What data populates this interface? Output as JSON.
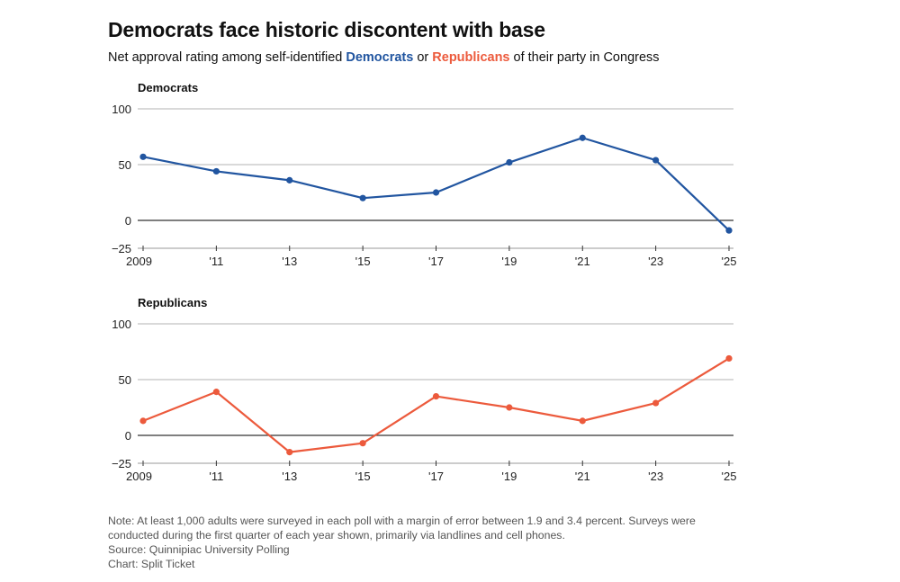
{
  "title": "Democrats face historic discontent with base",
  "subtitle": {
    "prefix": "Net approval rating among self-identified ",
    "dem": "Democrats",
    "middle": " or ",
    "rep": "Republicans",
    "suffix": " of their party in Congress"
  },
  "colors": {
    "dem": "#2155a0",
    "rep": "#ec5a3c",
    "grid": "#b3b3b3",
    "zero": "#333333"
  },
  "chart_data": [
    {
      "type": "line",
      "title": "Democrats",
      "xlabel": "",
      "ylabel": "",
      "x": [
        2009,
        2011,
        2013,
        2015,
        2017,
        2019,
        2021,
        2023,
        2025
      ],
      "xtick_labels": [
        "2009",
        "'11",
        "'13",
        "'15",
        "'17",
        "'19",
        "'21",
        "'23",
        "'25"
      ],
      "ytick_values": [
        100,
        50,
        0,
        -25
      ],
      "ytick_labels": [
        "100",
        "50",
        "0",
        "−25"
      ],
      "ylim": [
        -25,
        100
      ],
      "series": [
        {
          "name": "Democrats",
          "values": [
            57,
            44,
            36,
            20,
            25,
            52,
            74,
            54,
            -9
          ]
        }
      ]
    },
    {
      "type": "line",
      "title": "Republicans",
      "xlabel": "",
      "ylabel": "",
      "x": [
        2009,
        2011,
        2013,
        2015,
        2017,
        2019,
        2021,
        2023,
        2025
      ],
      "xtick_labels": [
        "2009",
        "'11",
        "'13",
        "'15",
        "'17",
        "'19",
        "'21",
        "'23",
        "'25"
      ],
      "ytick_values": [
        100,
        50,
        0,
        -25
      ],
      "ytick_labels": [
        "100",
        "50",
        "0",
        "−25"
      ],
      "ylim": [
        -25,
        100
      ],
      "series": [
        {
          "name": "Republicans",
          "values": [
            13,
            39,
            -15,
            -7,
            35,
            25,
            13,
            29,
            69
          ]
        }
      ]
    }
  ],
  "notes": {
    "note_line1": "Note: At least 1,000 adults were surveyed in each poll with a margin of error between 1.9 and 3.4 percent. Surveys were",
    "note_line2": "conducted during the first quarter of each year shown, primarily via landlines and cell phones.",
    "source": "Source: Quinnipiac University Polling",
    "credit": "Chart: Split Ticket"
  }
}
